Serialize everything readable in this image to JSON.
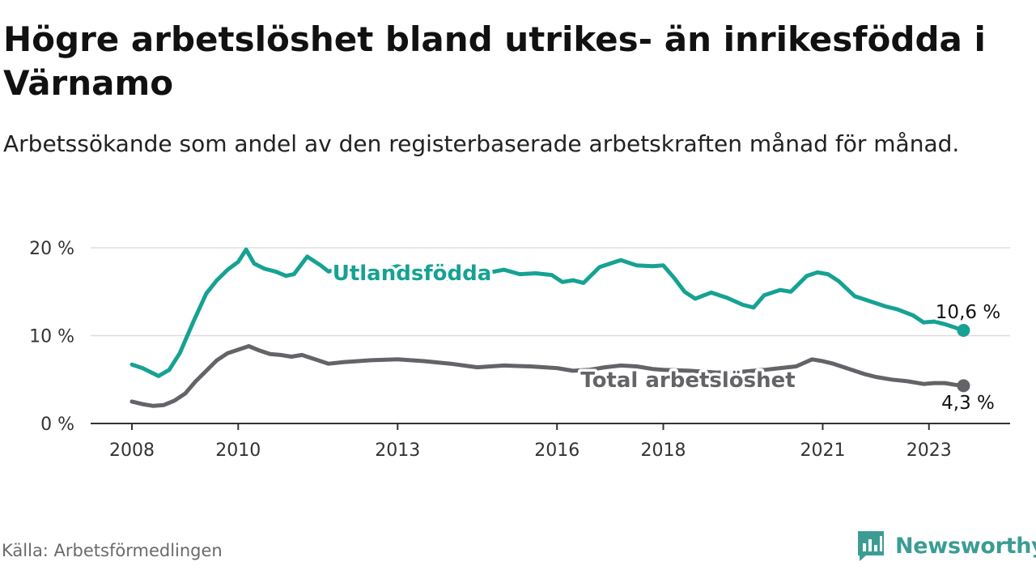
{
  "header": {
    "title": "Högre arbetslöshet bland utrikes- än inrikesfödda i Värnamo",
    "subtitle": "Arbetssökande som andel av den registerbaserade arbetskraften månad för månad."
  },
  "footer": {
    "source": "Källa: Arbetsförmedlingen",
    "brand": "Newsworthy"
  },
  "colors": {
    "foreign_born": "#16a293",
    "total": "#636368",
    "grid": "#dddddd",
    "axis": "#333333",
    "brand": "#3c9c94"
  },
  "chart_data": {
    "type": "line",
    "title": "Högre arbetslöshet bland utrikes- än inrikesfödda i Värnamo",
    "xlabel": "",
    "ylabel": "",
    "xlim": [
      2008.0,
      2023.75
    ],
    "ylim": [
      0,
      20
    ],
    "y_ticks": [
      0,
      10,
      20
    ],
    "y_tick_labels": [
      "0 %",
      "10 %",
      "20 %"
    ],
    "x_ticks": [
      2008,
      2010,
      2013,
      2016,
      2018,
      2021,
      2023
    ],
    "x_tick_labels": [
      "2008",
      "2010",
      "2013",
      "2016",
      "2018",
      "2021",
      "2023"
    ],
    "grid": true,
    "series": [
      {
        "name": "Utlandsfödda",
        "color": "#16a293",
        "end_label": "10,6 %",
        "x": [
          2008.0,
          2008.2,
          2008.5,
          2008.7,
          2008.9,
          2009.15,
          2009.4,
          2009.6,
          2009.8,
          2010.0,
          2010.15,
          2010.3,
          2010.5,
          2010.7,
          2010.9,
          2011.05,
          2011.3,
          2011.55,
          2011.7,
          2012.0,
          2012.5,
          2013.0,
          2013.5,
          2014.0,
          2014.5,
          2015.0,
          2015.3,
          2015.6,
          2015.9,
          2016.1,
          2016.3,
          2016.5,
          2016.8,
          2017.0,
          2017.2,
          2017.5,
          2017.8,
          2018.0,
          2018.2,
          2018.4,
          2018.6,
          2018.9,
          2019.2,
          2019.5,
          2019.7,
          2019.9,
          2020.2,
          2020.4,
          2020.7,
          2020.9,
          2021.1,
          2021.3,
          2021.6,
          2021.9,
          2022.2,
          2022.4,
          2022.7,
          2022.9,
          2023.1,
          2023.3,
          2023.5,
          2023.65
        ],
        "values": [
          6.7,
          6.3,
          5.4,
          6.1,
          8.0,
          11.5,
          14.8,
          16.3,
          17.5,
          18.4,
          19.8,
          18.2,
          17.6,
          17.3,
          16.8,
          17.0,
          19.0,
          18.0,
          17.3,
          17.8,
          17.2,
          17.9,
          16.9,
          16.4,
          16.9,
          17.5,
          17.0,
          17.1,
          16.9,
          16.1,
          16.3,
          16.0,
          17.8,
          18.2,
          18.6,
          18.0,
          17.9,
          18.0,
          16.6,
          15.0,
          14.2,
          14.9,
          14.3,
          13.5,
          13.2,
          14.6,
          15.2,
          15.0,
          16.8,
          17.2,
          17.0,
          16.2,
          14.5,
          13.9,
          13.3,
          13.0,
          12.3,
          11.5,
          11.6,
          11.3,
          10.9,
          10.6
        ]
      },
      {
        "name": "Total arbetslöshet",
        "color": "#636368",
        "end_label": "4,3 %",
        "x": [
          2008.0,
          2008.2,
          2008.4,
          2008.6,
          2008.8,
          2009.0,
          2009.2,
          2009.4,
          2009.6,
          2009.8,
          2010.0,
          2010.2,
          2010.4,
          2010.6,
          2010.8,
          2011.0,
          2011.2,
          2011.5,
          2011.7,
          2012.0,
          2012.5,
          2013.0,
          2013.5,
          2014.0,
          2014.5,
          2015.0,
          2015.5,
          2016.0,
          2016.3,
          2016.6,
          2016.9,
          2017.2,
          2017.5,
          2017.8,
          2018.0,
          2018.5,
          2019.0,
          2019.5,
          2019.9,
          2020.2,
          2020.5,
          2020.8,
          2021.0,
          2021.2,
          2021.5,
          2021.8,
          2022.0,
          2022.3,
          2022.6,
          2022.9,
          2023.1,
          2023.3,
          2023.5,
          2023.65
        ],
        "values": [
          2.5,
          2.2,
          2.0,
          2.1,
          2.6,
          3.4,
          4.8,
          6.0,
          7.2,
          8.0,
          8.4,
          8.8,
          8.3,
          7.9,
          7.8,
          7.6,
          7.8,
          7.2,
          6.8,
          7.0,
          7.2,
          7.3,
          7.1,
          6.8,
          6.4,
          6.6,
          6.5,
          6.3,
          6.0,
          6.1,
          6.4,
          6.6,
          6.5,
          6.2,
          6.1,
          6.0,
          5.8,
          5.9,
          6.1,
          6.3,
          6.5,
          7.3,
          7.1,
          6.8,
          6.2,
          5.6,
          5.3,
          5.0,
          4.8,
          4.5,
          4.6,
          4.6,
          4.4,
          4.3
        ]
      }
    ]
  }
}
